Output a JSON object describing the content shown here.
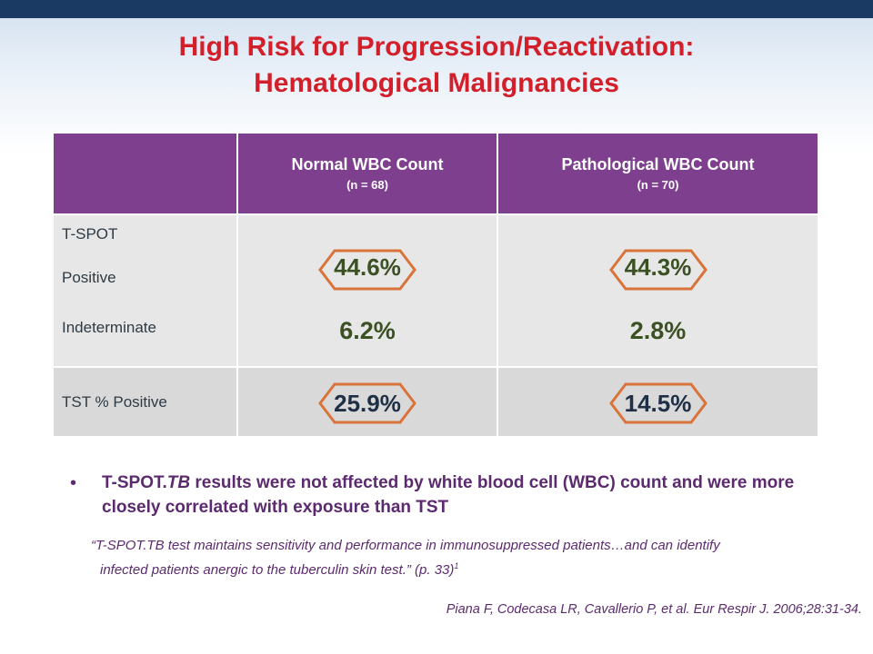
{
  "title": {
    "line1": "High Risk for Progression/Reactivation:",
    "line2": "Hematological Malignancies"
  },
  "table": {
    "columns": [
      {
        "label": "Normal WBC Count",
        "n": "(n = 68)"
      },
      {
        "label": "Pathological WBC Count",
        "n": "(n = 70)"
      }
    ],
    "rows": {
      "tspot_header": "T-SPOT",
      "positive_label": "Positive",
      "indeterminate_label": "Indeterminate",
      "tst_label": "TST % Positive"
    },
    "values": {
      "tspot_positive": [
        "44.6%",
        "44.3%"
      ],
      "tspot_indeterminate": [
        "6.2%",
        "2.8%"
      ],
      "tst_positive": [
        "25.9%",
        "14.5%"
      ]
    }
  },
  "bullet": {
    "text_pre": "T-SPOT.",
    "text_italic": "TB",
    "text_post": " results were not affected by white blood cell (WBC) count and were more closely correlated with exposure than TST"
  },
  "quote": {
    "line1": "“T-SPOT.TB test maintains sensitivity and performance in immunosuppressed patients…and can identify",
    "line2": "infected patients anergic to the tuberculin skin test.” (p. 33)",
    "sup": "1"
  },
  "citation": "Piana F, Codecasa LR, Cavallerio P, et al. Eur Respir J. 2006;28:31-34.",
  "colors": {
    "title": "#d21f2a",
    "header_bg": "#7e3f8f",
    "hex_outline": "#d9733a",
    "value_green": "#3b5123",
    "text_purple": "#5c2a6f"
  }
}
